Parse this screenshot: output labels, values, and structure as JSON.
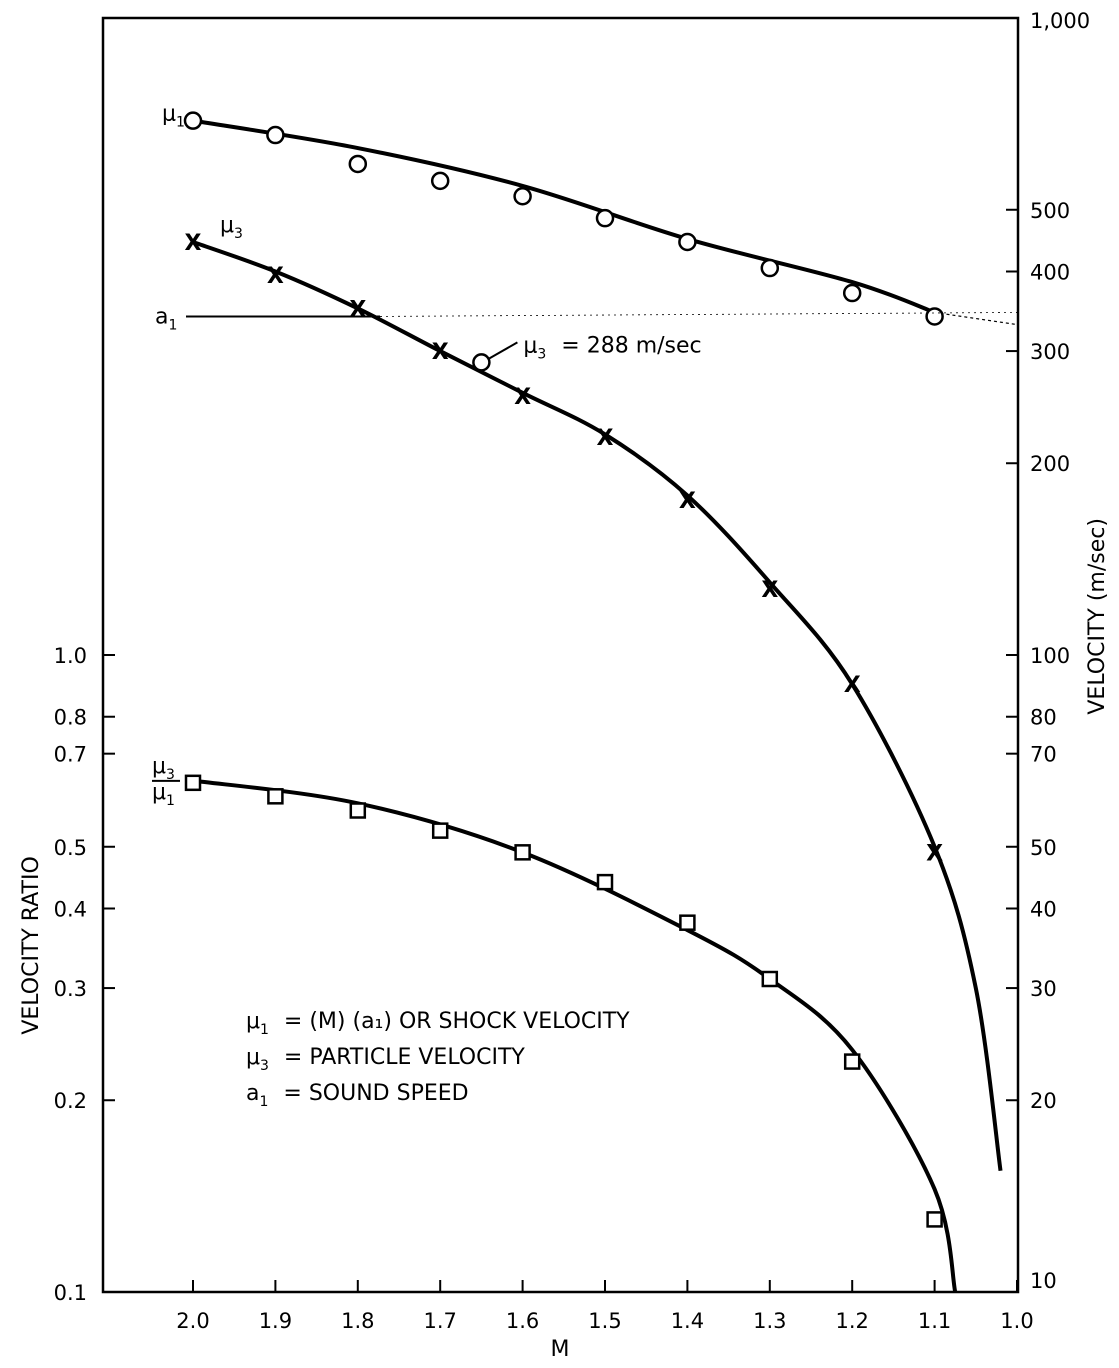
{
  "chart_data": {
    "type": "scatter",
    "x_axis": {
      "label": "M",
      "ticks": [
        "2.0",
        "1.9",
        "1.8",
        "1.7",
        "1.6",
        "1.5",
        "1.4",
        "1.3",
        "1.2",
        "1.1",
        "1.0"
      ],
      "range": [
        2.1,
        1.0
      ],
      "reversed": true
    },
    "y_axis_left": {
      "label": "VELOCITY RATIO",
      "scale": "log",
      "ticks": [
        "0.1",
        "0.2",
        "0.3",
        "0.4",
        "0.5",
        "0.7",
        "0.8",
        "1.0"
      ],
      "range": [
        0.1,
        10
      ]
    },
    "y_axis_right": {
      "label": "VELOCITY (m/sec)",
      "scale": "log",
      "ticks": [
        "10",
        "20",
        "30",
        "40",
        "50",
        "70",
        "80",
        "100",
        "200",
        "300",
        "400",
        "500",
        "1,000"
      ],
      "range": [
        10,
        1000
      ]
    },
    "series": [
      {
        "name": "μ1",
        "axis": "right",
        "marker": "circle",
        "x": [
          2.0,
          1.9,
          1.8,
          1.7,
          1.6,
          1.5,
          1.4,
          1.3,
          1.2,
          1.1
        ],
        "y": [
          690,
          655,
          590,
          555,
          525,
          485,
          445,
          405,
          370,
          340
        ]
      },
      {
        "name": "μ3",
        "axis": "right",
        "marker": "x",
        "x": [
          2.0,
          1.9,
          1.8,
          1.7,
          1.6,
          1.5,
          1.4,
          1.3,
          1.2,
          1.1
        ],
        "y": [
          445,
          395,
          350,
          300,
          255,
          220,
          175,
          127,
          90,
          49
        ]
      },
      {
        "name": "μ3/μ1",
        "axis": "left",
        "marker": "square",
        "x": [
          2.0,
          1.9,
          1.8,
          1.7,
          1.6,
          1.5,
          1.4,
          1.3,
          1.2,
          1.1
        ],
        "y": [
          0.63,
          0.6,
          0.57,
          0.53,
          0.49,
          0.44,
          0.38,
          0.31,
          0.23,
          0.13
        ]
      }
    ],
    "sound_speed_marker": {
      "label": "a",
      "subscript": "1",
      "value": 340
    },
    "annotation": {
      "mu": "μ",
      "sub": "3",
      "text": "= 288 m/sec",
      "x": 1.65,
      "y": 288
    },
    "legend": [
      {
        "sym": "μ",
        "sub": "1",
        "text": "= (M) (a₁) OR SHOCK VELOCITY"
      },
      {
        "sym": "μ",
        "sub": "3",
        "text": "= PARTICLE VELOCITY"
      },
      {
        "sym": "a",
        "sub": "1",
        "text": "= SOUND SPEED"
      }
    ],
    "legend_placement": "lower-left"
  }
}
